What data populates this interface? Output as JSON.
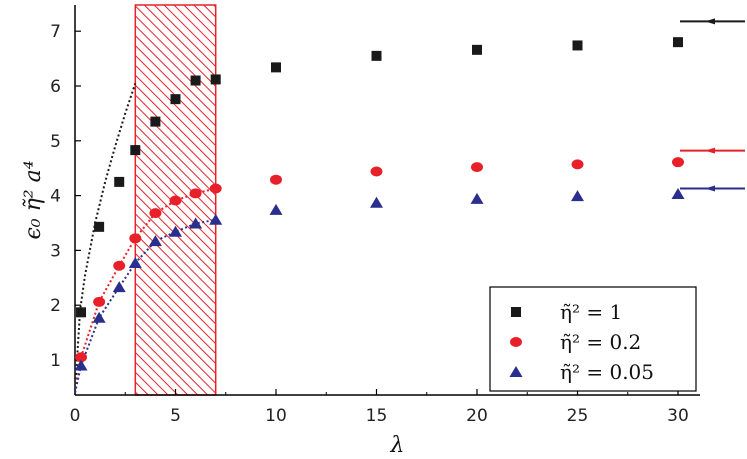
{
  "chart_data": {
    "type": "scatter",
    "xlabel": "λ",
    "ylabel": "ϵ₀ η̃² a⁴",
    "xlim": [
      0,
      31
    ],
    "ylim": [
      0.4,
      7.5
    ],
    "x_ticks": [
      0,
      5,
      10,
      15,
      20,
      25,
      30
    ],
    "y_ticks": [
      1,
      2,
      3,
      4,
      5,
      6,
      7
    ],
    "highlight_region": {
      "x_range": [
        3,
        7
      ],
      "pattern": "diagonal hatch",
      "color": "#e8202a"
    },
    "legend_position": "bottom-right",
    "series": [
      {
        "name": "η̃² = 1",
        "marker": "square",
        "color": "#1a1a1a",
        "x": [
          0.3,
          1.2,
          2.2,
          3,
          4,
          5,
          6,
          7,
          10,
          15,
          20,
          25,
          30
        ],
        "y": [
          1.87,
          3.43,
          4.25,
          4.83,
          5.35,
          5.76,
          6.1,
          6.12,
          6.34,
          6.55,
          6.66,
          6.74,
          6.8
        ],
        "fit_x": [
          0,
          0.25,
          0.5,
          1,
          1.5,
          2,
          2.5,
          3
        ],
        "fit_y": [
          0.4,
          1.9,
          2.55,
          3.5,
          4.25,
          4.9,
          5.5,
          6.05
        ],
        "limit": 7.18
      },
      {
        "name": "η̃² = 0.2",
        "marker": "circle",
        "color": "#e8202a",
        "x": [
          0.3,
          1.2,
          2.2,
          3,
          4,
          5,
          6,
          7,
          10,
          15,
          20,
          25,
          30
        ],
        "y": [
          1.05,
          2.06,
          2.72,
          3.22,
          3.68,
          3.91,
          4.04,
          4.13,
          4.29,
          4.44,
          4.52,
          4.57,
          4.61
        ],
        "fit_x": [
          0,
          0.3,
          1.2,
          2.2,
          3,
          4,
          5,
          6,
          7
        ],
        "fit_y": [
          0.4,
          1.05,
          2.06,
          2.72,
          3.22,
          3.68,
          3.91,
          4.04,
          4.13
        ],
        "limit": 4.82
      },
      {
        "name": "η̃² = 0.05",
        "marker": "triangle",
        "color": "#2a2f8e",
        "x": [
          0.3,
          1.2,
          2.2,
          3,
          4,
          5,
          6,
          7,
          10,
          15,
          20,
          25,
          30
        ],
        "y": [
          0.9,
          1.77,
          2.33,
          2.77,
          3.17,
          3.34,
          3.49,
          3.56,
          3.74,
          3.87,
          3.94,
          3.99,
          4.03
        ],
        "fit_x": [
          0,
          0.3,
          1.2,
          2.2,
          3,
          4,
          5,
          6,
          7
        ],
        "fit_y": [
          0.4,
          0.9,
          1.77,
          2.33,
          2.77,
          3.17,
          3.34,
          3.49,
          3.56
        ],
        "limit": 4.13
      }
    ]
  }
}
